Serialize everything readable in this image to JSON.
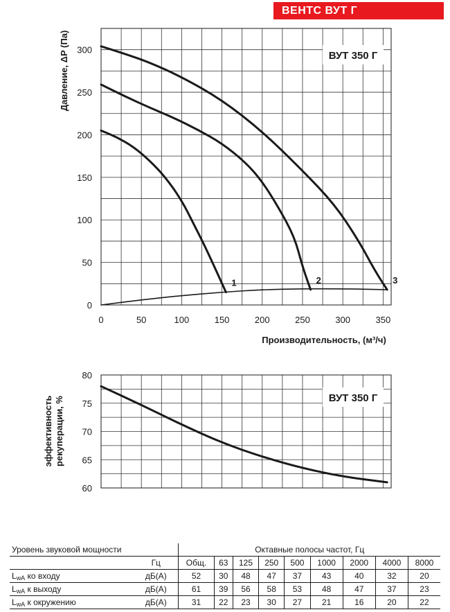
{
  "badge": "ВЕНТС ВУТ Г",
  "chart_data": [
    {
      "type": "line",
      "model_label": "ВУТ 350 Г",
      "xlabel": "Производительность, (м³/ч)",
      "ylabel": "Давление, ΔP (Па)",
      "xlim": [
        0,
        360
      ],
      "ylim": [
        0,
        325
      ],
      "xticks": [
        0,
        50,
        100,
        150,
        200,
        250,
        300,
        350
      ],
      "yticks": [
        0,
        50,
        100,
        150,
        200,
        250,
        300
      ],
      "grid": true,
      "series": [
        {
          "name": "1",
          "x": [
            0,
            20,
            40,
            60,
            80,
            100,
            115,
            130,
            155
          ],
          "y": [
            205,
            197,
            186,
            170,
            150,
            123,
            95,
            67,
            15
          ]
        },
        {
          "name": "2",
          "x": [
            0,
            30,
            60,
            90,
            120,
            150,
            180,
            200,
            220,
            240,
            250,
            260
          ],
          "y": [
            259,
            245,
            232,
            220,
            206,
            190,
            167,
            145,
            115,
            80,
            45,
            18
          ]
        },
        {
          "name": "3",
          "x": [
            0,
            30,
            60,
            100,
            150,
            200,
            250,
            290,
            320,
            340,
            355
          ],
          "y": [
            304,
            295,
            285,
            268,
            241,
            204,
            158,
            118,
            75,
            40,
            18
          ]
        },
        {
          "name": "system",
          "x": [
            0,
            50,
            100,
            150,
            200,
            250,
            300,
            355
          ],
          "y": [
            0,
            6,
            11,
            15,
            18,
            19,
            19,
            18
          ]
        }
      ]
    },
    {
      "type": "line",
      "model_label": "ВУТ 350 Г",
      "ylabel": "эффективность рекуперации, %",
      "xlim": [
        0,
        360
      ],
      "ylim": [
        60,
        80
      ],
      "yticks": [
        60,
        65,
        70,
        75,
        80
      ],
      "grid": true,
      "series": [
        {
          "name": "efficiency",
          "x": [
            0,
            50,
            100,
            150,
            200,
            250,
            300,
            355
          ],
          "y": [
            78,
            74.7,
            71.2,
            68.0,
            65.5,
            63.5,
            62.0,
            61.0
          ]
        }
      ]
    }
  ],
  "sound_table": {
    "row_header": "Уровень звуковой мощности",
    "bands_header": "Октавные полосы частот, Гц",
    "unit_hz": "Гц",
    "bands": [
      "Общ.",
      "63",
      "125",
      "250",
      "500",
      "1000",
      "2000",
      "4000",
      "8000"
    ],
    "rows": [
      {
        "l": "L",
        "sub": "wA",
        "rest": " ко входу",
        "unit": "дБ(А)",
        "values": [
          "52",
          "30",
          "48",
          "47",
          "37",
          "43",
          "40",
          "32",
          "20"
        ]
      },
      {
        "l": "L",
        "sub": "wA",
        "rest": " к выходу",
        "unit": "дБ(А)",
        "values": [
          "61",
          "39",
          "56",
          "58",
          "53",
          "48",
          "47",
          "37",
          "23"
        ]
      },
      {
        "l": "L",
        "sub": "wA",
        "rest": " к окружению",
        "unit": "дБ(А)",
        "values": [
          "31",
          "22",
          "23",
          "30",
          "27",
          "21",
          "16",
          "20",
          "22"
        ]
      }
    ]
  }
}
